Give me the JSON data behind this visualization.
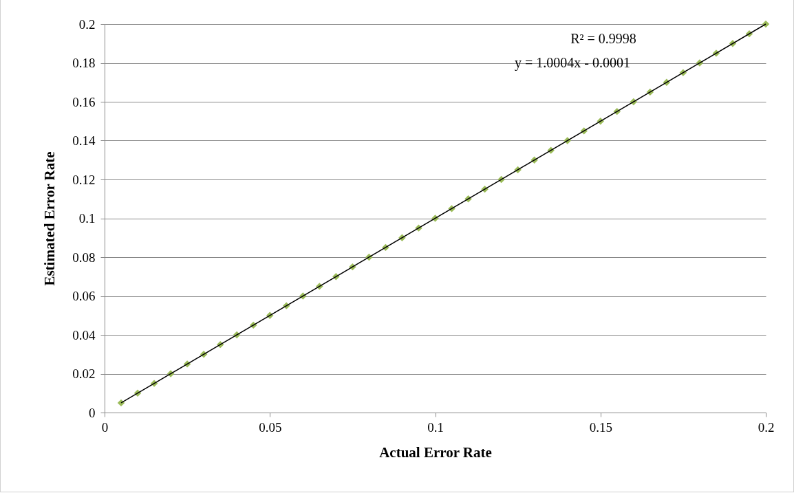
{
  "chart_data": {
    "type": "scatter",
    "xlabel": "Actual Error Rate",
    "ylabel": "Estimated Error Rate",
    "xlim": [
      0,
      0.2
    ],
    "xticks": [
      0,
      0.05,
      0.1,
      0.15,
      0.2
    ],
    "ylim": [
      0,
      0.2
    ],
    "yticks": [
      0,
      0.02,
      0.04,
      0.06,
      0.08,
      0.1,
      0.12,
      0.14,
      0.16,
      0.18,
      0.2
    ],
    "grid": "y",
    "annotations": [
      "R² = 0.9998",
      "y = 1.0004x - 0.0001"
    ],
    "series": [
      {
        "marker": "diamond",
        "color": "#9bbb59",
        "x": [
          0.005,
          0.01,
          0.015,
          0.02,
          0.025,
          0.03,
          0.035,
          0.04,
          0.045,
          0.05,
          0.055,
          0.06,
          0.065,
          0.07,
          0.075,
          0.08,
          0.085,
          0.09,
          0.095,
          0.1,
          0.105,
          0.11,
          0.115,
          0.12,
          0.125,
          0.13,
          0.135,
          0.14,
          0.145,
          0.15,
          0.155,
          0.16,
          0.165,
          0.17,
          0.175,
          0.18,
          0.185,
          0.19,
          0.195,
          0.2
        ],
        "values": [
          0.005,
          0.01,
          0.015,
          0.02,
          0.025,
          0.03,
          0.035,
          0.04,
          0.045,
          0.05,
          0.055,
          0.06,
          0.065,
          0.07,
          0.075,
          0.08,
          0.085,
          0.09,
          0.095,
          0.1,
          0.105,
          0.11,
          0.115,
          0.12,
          0.125,
          0.13,
          0.135,
          0.14,
          0.145,
          0.15,
          0.155,
          0.16,
          0.165,
          0.17,
          0.175,
          0.18,
          0.185,
          0.19,
          0.195,
          0.2
        ]
      },
      {
        "type": "line",
        "marker": "none",
        "color": "#000000",
        "line_style": "solid",
        "x": [
          0.005,
          0.2
        ],
        "values": [
          0.005,
          0.2
        ]
      }
    ]
  }
}
